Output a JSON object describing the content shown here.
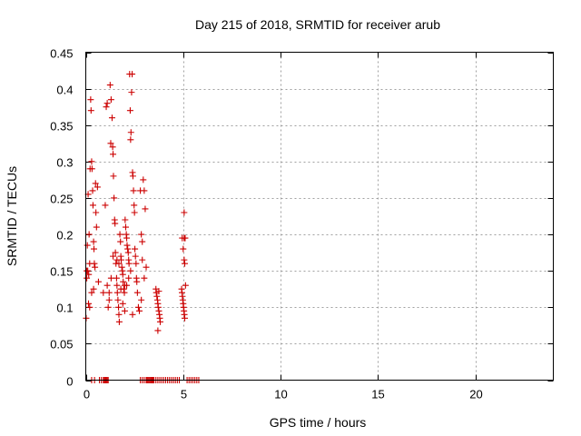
{
  "chart_data": {
    "type": "scatter",
    "title": "Day 215 of 2018, SRMTID for receiver arub",
    "xlabel": "GPS time / hours",
    "ylabel": "SRMTID / TECUs",
    "xlim": [
      0,
      24
    ],
    "ylim": [
      0,
      0.45
    ],
    "xticks": [
      0,
      5,
      10,
      15,
      20
    ],
    "xtick_labels": [
      "0",
      "5",
      "10",
      "15",
      "20"
    ],
    "yticks": [
      0,
      0.05,
      0.1,
      0.15,
      0.2,
      0.25,
      0.3,
      0.35,
      0.4,
      0.45
    ],
    "ytick_labels": [
      "0",
      "0.05",
      "0.1",
      "0.15",
      "0.2",
      "0.25",
      "0.3",
      "0.35",
      "0.4",
      "0.45"
    ],
    "grid": true,
    "marker": "plus",
    "color": "#cc0000",
    "series": [
      {
        "name": "SRMTID",
        "points": [
          [
            0.02,
            0.085
          ],
          [
            0.05,
            0.14
          ],
          [
            0.08,
            0.185
          ],
          [
            0.1,
            0.15
          ],
          [
            0.12,
            0.255
          ],
          [
            0.14,
            0.105
          ],
          [
            0.17,
            0.2
          ],
          [
            0.2,
            0.16
          ],
          [
            0.22,
            0.29
          ],
          [
            0.25,
            0.385
          ],
          [
            0.27,
            0.37
          ],
          [
            0.3,
            0.3
          ],
          [
            0.32,
            0.29
          ],
          [
            0.35,
            0.26
          ],
          [
            0.37,
            0.24
          ],
          [
            0.4,
            0.19
          ],
          [
            0.42,
            0.18
          ],
          [
            0.44,
            0.16
          ],
          [
            0.47,
            0.155
          ],
          [
            0.5,
            0.27
          ],
          [
            0.52,
            0.23
          ],
          [
            0.55,
            0.21
          ],
          [
            0.6,
            0.265
          ],
          [
            0.65,
            0.135
          ],
          [
            0.2,
            0.1
          ],
          [
            0.3,
            0.12
          ],
          [
            0.4,
            0.125
          ],
          [
            0.05,
            0.15
          ],
          [
            0.15,
            0.145
          ],
          [
            0.9,
            0.12
          ],
          [
            1.0,
            0.24
          ],
          [
            1.05,
            0.375
          ],
          [
            1.1,
            0.38
          ],
          [
            1.15,
            0.1
          ],
          [
            1.2,
            0.11
          ],
          [
            1.25,
            0.405
          ],
          [
            1.28,
            0.325
          ],
          [
            1.3,
            0.385
          ],
          [
            1.35,
            0.36
          ],
          [
            1.38,
            0.32
          ],
          [
            1.4,
            0.31
          ],
          [
            1.42,
            0.28
          ],
          [
            1.45,
            0.25
          ],
          [
            1.48,
            0.22
          ],
          [
            1.5,
            0.215
          ],
          [
            1.52,
            0.175
          ],
          [
            1.55,
            0.16
          ],
          [
            1.58,
            0.14
          ],
          [
            1.6,
            0.13
          ],
          [
            1.62,
            0.12
          ],
          [
            1.65,
            0.11
          ],
          [
            1.68,
            0.1
          ],
          [
            1.7,
            0.09
          ],
          [
            1.72,
            0.08
          ],
          [
            1.75,
            0.2
          ],
          [
            1.78,
            0.19
          ],
          [
            1.8,
            0.17
          ],
          [
            1.82,
            0.165
          ],
          [
            1.85,
            0.155
          ],
          [
            1.88,
            0.15
          ],
          [
            1.9,
            0.145
          ],
          [
            1.92,
            0.135
          ],
          [
            1.95,
            0.125
          ],
          [
            1.98,
            0.12
          ],
          [
            2.0,
            0.13
          ],
          [
            2.02,
            0.22
          ],
          [
            2.05,
            0.21
          ],
          [
            2.08,
            0.2
          ],
          [
            2.1,
            0.195
          ],
          [
            2.12,
            0.185
          ],
          [
            2.15,
            0.18
          ],
          [
            2.18,
            0.175
          ],
          [
            2.2,
            0.165
          ],
          [
            2.22,
            0.16
          ],
          [
            2.25,
            0.42
          ],
          [
            2.28,
            0.37
          ],
          [
            2.3,
            0.33
          ],
          [
            2.32,
            0.34
          ],
          [
            2.35,
            0.395
          ],
          [
            2.38,
            0.42
          ],
          [
            2.4,
            0.285
          ],
          [
            2.42,
            0.28
          ],
          [
            2.45,
            0.26
          ],
          [
            2.48,
            0.24
          ],
          [
            2.5,
            0.23
          ],
          [
            2.52,
            0.18
          ],
          [
            2.55,
            0.17
          ],
          [
            2.58,
            0.16
          ],
          [
            2.6,
            0.14
          ],
          [
            2.62,
            0.135
          ],
          [
            2.65,
            0.12
          ],
          [
            2.7,
            0.1
          ],
          [
            2.75,
            0.095
          ],
          [
            2.8,
            0.26
          ],
          [
            2.85,
            0.2
          ],
          [
            2.9,
            0.19
          ],
          [
            2.95,
            0.275
          ],
          [
            3.0,
            0.26
          ],
          [
            3.05,
            0.235
          ],
          [
            3.1,
            0.155
          ],
          [
            3.0,
            0.14
          ],
          [
            2.9,
            0.165
          ],
          [
            2.85,
            0.11
          ],
          [
            1.3,
            0.14
          ],
          [
            1.4,
            0.17
          ],
          [
            1.1,
            0.13
          ],
          [
            1.2,
            0.12
          ],
          [
            2.1,
            0.13
          ],
          [
            2.2,
            0.14
          ],
          [
            2.3,
            0.15
          ],
          [
            2.4,
            0.09
          ],
          [
            1.6,
            0.165
          ],
          [
            1.7,
            0.16
          ],
          [
            1.8,
            0.125
          ],
          [
            1.9,
            0.105
          ],
          [
            2.0,
            0.095
          ],
          [
            3.6,
            0.125
          ],
          [
            3.62,
            0.12
          ],
          [
            3.65,
            0.115
          ],
          [
            3.68,
            0.11
          ],
          [
            3.7,
            0.105
          ],
          [
            3.72,
            0.1
          ],
          [
            3.75,
            0.095
          ],
          [
            3.78,
            0.09
          ],
          [
            3.8,
            0.085
          ],
          [
            3.82,
            0.08
          ],
          [
            3.7,
            0.068
          ],
          [
            3.75,
            0.122
          ],
          [
            4.92,
            0.125
          ],
          [
            4.94,
            0.12
          ],
          [
            4.96,
            0.115
          ],
          [
            4.98,
            0.11
          ],
          [
            5.0,
            0.105
          ],
          [
            5.02,
            0.1
          ],
          [
            5.04,
            0.095
          ],
          [
            5.06,
            0.09
          ],
          [
            5.08,
            0.085
          ],
          [
            5.05,
            0.195
          ],
          [
            5.1,
            0.195
          ],
          [
            5.0,
            0.18
          ],
          [
            5.05,
            0.165
          ],
          [
            5.08,
            0.16
          ],
          [
            5.12,
            0.13
          ],
          [
            5.05,
            0.23
          ],
          [
            4.95,
            0.195
          ],
          [
            0.3,
            0
          ],
          [
            0.45,
            0
          ],
          [
            0.7,
            0
          ],
          [
            0.8,
            0
          ],
          [
            0.9,
            0
          ],
          [
            0.95,
            0
          ],
          [
            1.0,
            0
          ],
          [
            1.05,
            0
          ],
          [
            1.1,
            0
          ],
          [
            1.15,
            0
          ],
          [
            2.8,
            0
          ],
          [
            2.9,
            0
          ],
          [
            3.0,
            0
          ],
          [
            3.1,
            0
          ],
          [
            3.15,
            0
          ],
          [
            3.2,
            0
          ],
          [
            3.25,
            0
          ],
          [
            3.3,
            0
          ],
          [
            3.35,
            0
          ],
          [
            3.4,
            0
          ],
          [
            3.45,
            0
          ],
          [
            3.5,
            0
          ],
          [
            3.6,
            0
          ],
          [
            3.7,
            0
          ],
          [
            3.8,
            0
          ],
          [
            3.9,
            0
          ],
          [
            4.0,
            0
          ],
          [
            4.1,
            0
          ],
          [
            4.2,
            0
          ],
          [
            4.3,
            0
          ],
          [
            4.4,
            0
          ],
          [
            4.5,
            0
          ],
          [
            4.6,
            0
          ],
          [
            4.7,
            0
          ],
          [
            4.8,
            0
          ],
          [
            5.2,
            0
          ],
          [
            5.3,
            0
          ],
          [
            5.4,
            0
          ],
          [
            5.5,
            0
          ],
          [
            5.6,
            0
          ],
          [
            5.7,
            0
          ],
          [
            5.8,
            0
          ]
        ]
      }
    ]
  }
}
